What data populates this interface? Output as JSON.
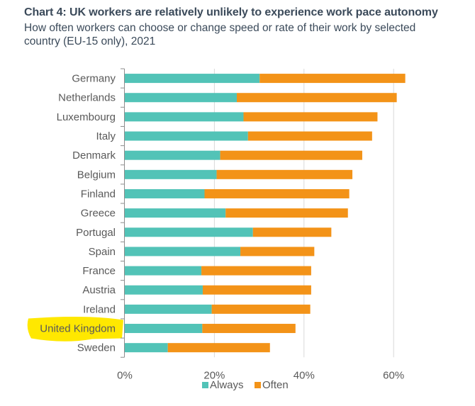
{
  "chart_data": {
    "type": "bar",
    "orientation": "horizontal",
    "stacked": true,
    "title": "Chart 4: UK workers are relatively unlikely to experience work pace autonomy",
    "subtitle": "How often workers can choose or change speed or rate of their work by selected country (EU-15 only), 2021",
    "xlabel": "",
    "ylabel": "",
    "xlim": [
      0,
      65
    ],
    "x_ticks": [
      0,
      20,
      40,
      60
    ],
    "x_tick_labels": [
      "0%",
      "20%",
      "40%",
      "60%"
    ],
    "grid": "vertical",
    "legend_position": "bottom",
    "highlighted_category": "United Kingdom",
    "highlight_color": "#FFE800",
    "categories": [
      "Germany",
      "Netherlands",
      "Luxembourg",
      "Italy",
      "Denmark",
      "Belgium",
      "Finland",
      "Greece",
      "Portugal",
      "Spain",
      "France",
      "Austria",
      "Ireland",
      "United Kingdom",
      "Sweden"
    ],
    "series": [
      {
        "name": "Always",
        "color": "#52C3B7",
        "values": [
          30.1,
          25.0,
          26.5,
          27.5,
          21.3,
          20.5,
          17.8,
          22.5,
          28.6,
          25.8,
          17.1,
          17.4,
          19.4,
          17.3,
          9.6
        ]
      },
      {
        "name": "Often",
        "color": "#F39318",
        "values": [
          32.5,
          35.7,
          29.9,
          27.7,
          31.7,
          30.3,
          32.3,
          27.3,
          17.5,
          16.5,
          24.5,
          24.2,
          22.0,
          20.8,
          22.8
        ]
      }
    ]
  }
}
